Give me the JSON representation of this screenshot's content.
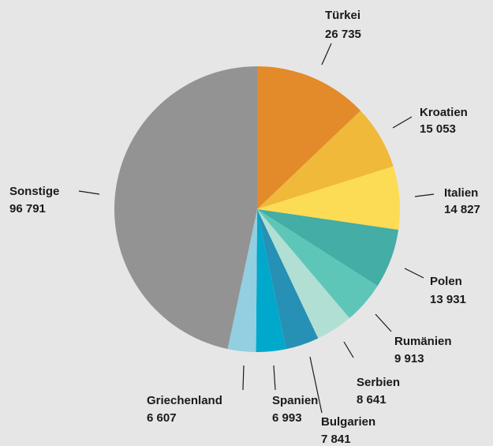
{
  "chart_data": {
    "type": "pie",
    "categories": [
      "Türkei",
      "Kroatien",
      "Italien",
      "Polen",
      "Rumänien",
      "Serbien",
      "Bulgarien",
      "Spanien",
      "Griechenland",
      "Sonstige"
    ],
    "values": [
      26735,
      15053,
      14827,
      13931,
      9913,
      8641,
      7841,
      6993,
      6607,
      96791
    ],
    "value_labels": [
      "26 735",
      "15 053",
      "14 827",
      "13 931",
      "9 913",
      "8 641",
      "7 841",
      "6 993",
      "6 607",
      "96 791"
    ],
    "colors": [
      "#e38a2a",
      "#f0b93a",
      "#fddc55",
      "#44ada5",
      "#5ec6b8",
      "#b1dfd4",
      "#2790b5",
      "#00a9cc",
      "#92cfe0",
      "#939393"
    ]
  }
}
